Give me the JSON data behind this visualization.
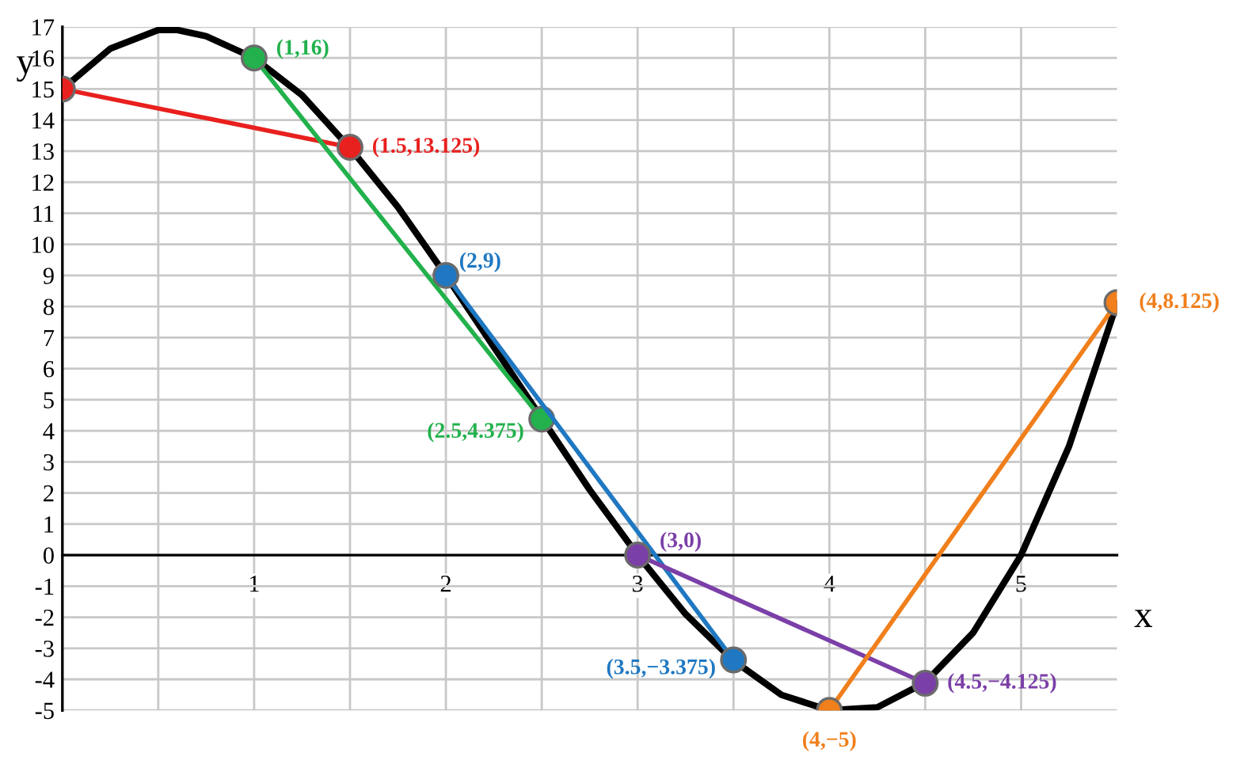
{
  "chart_data": {
    "type": "line",
    "xlabel": "x",
    "ylabel": "y",
    "x": [
      0,
      0.25,
      0.5,
      0.6,
      0.75,
      1,
      1.25,
      1.5,
      1.75,
      2,
      2.25,
      2.5,
      2.75,
      3,
      3.25,
      3.5,
      3.75,
      4,
      4.25,
      4.5,
      4.75,
      5,
      5.25,
      5.5
    ],
    "series": [
      {
        "color": "#000000",
        "marker": "none",
        "values": [
          15,
          16.3,
          16.9,
          16.9,
          16.7,
          16,
          14.8,
          13.1,
          11.2,
          9,
          6.7,
          4.4,
          2.1,
          0,
          -1.9,
          -3.4,
          -4.5,
          -5,
          -4.9,
          -4.1,
          -2.5,
          0,
          3.5,
          8.1
        ]
      },
      {
        "color": "#e8201e",
        "marker": "circle",
        "x": [
          0,
          1.5
        ],
        "values": [
          15,
          13.125
        ]
      },
      {
        "color": "#22b14c",
        "marker": "circle",
        "x": [
          1,
          2.5
        ],
        "values": [
          16,
          4.375
        ]
      },
      {
        "color": "#1f78c1",
        "marker": "circle",
        "x": [
          2,
          3.5
        ],
        "values": [
          9,
          -3.375
        ]
      },
      {
        "color": "#7b3fa8",
        "marker": "circle",
        "x": [
          3,
          4.5
        ],
        "values": [
          0,
          -4.125
        ]
      },
      {
        "color": "#f07f1c",
        "marker": "circle",
        "x": [
          4,
          5.5
        ],
        "values": [
          -5,
          8.125
        ]
      }
    ],
    "annotations": [
      {
        "text": "(1,16)",
        "x": 1,
        "y": 16
      },
      {
        "text": "(1.5,13.125)",
        "x": 1.5,
        "y": 13.125
      },
      {
        "text": "(2,9)",
        "x": 2,
        "y": 9
      },
      {
        "text": "(2.5,4.375)",
        "x": 2.5,
        "y": 4.375
      },
      {
        "text": "(3,0)",
        "x": 3,
        "y": 0
      },
      {
        "text": "(3.5,−3.375)",
        "x": 3.5,
        "y": -3.375
      },
      {
        "text": "(4,−5)",
        "x": 4,
        "y": -5
      },
      {
        "text": "(4.5,−4.125)",
        "x": 4.5,
        "y": -4.125
      },
      {
        "text": "(4,8.125)",
        "x": 5.5,
        "y": 8.125
      }
    ],
    "xlim": [
      0,
      5.5
    ],
    "xticks": [
      {
        "value": 0.5,
        "label": null
      },
      1,
      {
        "value": 1.5,
        "label": null
      },
      2,
      {
        "value": 2.5,
        "label": null
      },
      3,
      {
        "value": 3.5,
        "label": null
      },
      4,
      {
        "value": 4.5,
        "label": null
      },
      5
    ],
    "ylim": [
      -5,
      17
    ],
    "yticks": [
      -5,
      -4,
      -3,
      -2,
      -1,
      0,
      1,
      2,
      3,
      4,
      5,
      6,
      7,
      8,
      9,
      10,
      11,
      12,
      13,
      14,
      15,
      16,
      17
    ],
    "grid": true,
    "line_style": "solid",
    "legend": false
  }
}
